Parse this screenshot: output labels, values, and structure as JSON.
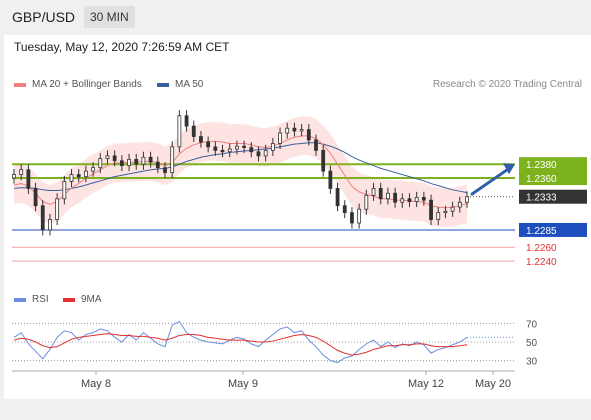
{
  "header": {
    "pair": "GBP/USD",
    "timeframe": "30 MIN"
  },
  "timestamp": "Tuesday, May 12, 2020 7:26:59 AM CET",
  "legend": {
    "ma20": "MA 20 + Bollinger Bands",
    "ma50": "MA 50"
  },
  "research": "Research © 2020 Trading Central",
  "rsi_legend": {
    "rsi": "RSI",
    "ma": "9MA"
  },
  "colors": {
    "ma20": "#f08080",
    "ma50": "#3a5fa0",
    "green": "#7cb31c",
    "blue": "#1f4fbf",
    "red": "#e03030",
    "dark": "#333333",
    "rsi": "#6a8ee0",
    "rsi_ma": "#e03030",
    "band": "#fde0de"
  },
  "chart_data": {
    "type": "candlestick",
    "ylim": [
      1.223,
      1.248
    ],
    "levels": [
      {
        "value": 1.238,
        "label": "1.2380",
        "color": "#7cb31c",
        "style": "box"
      },
      {
        "value": 1.236,
        "label": "1.2360",
        "color": "#7cb31c",
        "style": "box"
      },
      {
        "value": 1.2333,
        "label": "1.2333",
        "color": "#333333",
        "style": "box"
      },
      {
        "value": 1.2285,
        "label": "1.2285",
        "color": "#1f4fbf",
        "style": "box"
      },
      {
        "value": 1.226,
        "label": "1.2260",
        "color": "#e03030",
        "style": "text"
      },
      {
        "value": 1.224,
        "label": "1.2240",
        "color": "#e03030",
        "style": "text"
      }
    ],
    "x_ticks": [
      "May 8",
      "May 9",
      "May 12",
      "May 20"
    ],
    "price_path": [
      1.2365,
      1.2372,
      1.2345,
      1.232,
      1.2285,
      1.23,
      1.233,
      1.2355,
      1.2365,
      1.2362,
      1.237,
      1.2375,
      1.2388,
      1.2392,
      1.2385,
      1.2378,
      1.2387,
      1.238,
      1.239,
      1.2383,
      1.2375,
      1.2368,
      1.2405,
      1.245,
      1.2435,
      1.242,
      1.2412,
      1.2405,
      1.24,
      1.2398,
      1.2402,
      1.2406,
      1.2404,
      1.2398,
      1.2392,
      1.24,
      1.241,
      1.2425,
      1.2432,
      1.2428,
      1.243,
      1.2415,
      1.24,
      1.237,
      1.2345,
      1.232,
      1.231,
      1.2295,
      1.2315,
      1.2335,
      1.2345,
      1.233,
      1.2338,
      1.2325,
      1.233,
      1.2326,
      1.2332,
      1.2328,
      1.23,
      1.231,
      1.2312,
      1.2318,
      1.2325,
      1.2333
    ],
    "ma20": [
      1.235,
      1.2352,
      1.2348,
      1.2338,
      1.2326,
      1.2322,
      1.2326,
      1.2336,
      1.2346,
      1.2352,
      1.236,
      1.2366,
      1.2372,
      1.2378,
      1.2382,
      1.2382,
      1.2383,
      1.2383,
      1.2384,
      1.2384,
      1.2382,
      1.2378,
      1.2382,
      1.2395,
      1.2403,
      1.2408,
      1.2411,
      1.2413,
      1.2413,
      1.2412,
      1.241,
      1.241,
      1.241,
      1.2408,
      1.2405,
      1.2404,
      1.2406,
      1.241,
      1.2415,
      1.2419,
      1.2421,
      1.2421,
      1.2417,
      1.2408,
      1.2396,
      1.238,
      1.2364,
      1.2348,
      1.234,
      1.2336,
      1.2334,
      1.233,
      1.233,
      1.2328,
      1.2328,
      1.2327,
      1.2326,
      1.2325,
      1.232,
      1.2318,
      1.2317,
      1.2318,
      1.232,
      1.2323
    ],
    "ma50": [
      1.2345,
      1.2346,
      1.2346,
      1.2345,
      1.2343,
      1.2342,
      1.2342,
      1.2343,
      1.2345,
      1.2347,
      1.235,
      1.2353,
      1.2356,
      1.2359,
      1.2362,
      1.2364,
      1.2366,
      1.2368,
      1.237,
      1.2372,
      1.2373,
      1.2374,
      1.2376,
      1.238,
      1.2384,
      1.2387,
      1.239,
      1.2392,
      1.2394,
      1.2395,
      1.2397,
      1.2398,
      1.2399,
      1.24,
      1.2401,
      1.2402,
      1.2403,
      1.2405,
      1.2407,
      1.2409,
      1.241,
      1.2411,
      1.2411,
      1.2409,
      1.2406,
      1.2402,
      1.2397,
      1.2391,
      1.2386,
      1.2382,
      1.2378,
      1.2374,
      1.2371,
      1.2368,
      1.2365,
      1.2362,
      1.2359,
      1.2356,
      1.2352,
      1.2349,
      1.2346,
      1.2343,
      1.2341,
      1.2339
    ],
    "rsi": {
      "ylim": [
        20,
        80
      ],
      "ticks": [
        70,
        50,
        30
      ],
      "rsi": [
        55,
        60,
        48,
        40,
        32,
        42,
        55,
        62,
        60,
        52,
        58,
        60,
        64,
        62,
        55,
        50,
        58,
        52,
        60,
        54,
        48,
        45,
        68,
        72,
        60,
        55,
        52,
        50,
        49,
        48,
        52,
        55,
        53,
        48,
        45,
        52,
        58,
        64,
        66,
        60,
        62,
        52,
        45,
        36,
        30,
        28,
        33,
        35,
        42,
        48,
        52,
        45,
        50,
        44,
        48,
        46,
        50,
        47,
        38,
        42,
        44,
        47,
        50,
        55
      ],
      "ma": [
        52,
        54,
        53,
        50,
        46,
        44,
        45,
        49,
        53,
        55,
        56,
        57,
        58,
        59,
        58,
        57,
        57,
        56,
        56,
        55,
        54,
        52,
        54,
        57,
        58,
        58,
        57,
        55,
        54,
        53,
        52,
        52,
        52,
        51,
        50,
        50,
        51,
        53,
        55,
        57,
        58,
        57,
        55,
        51,
        46,
        41,
        38,
        36,
        37,
        39,
        42,
        44,
        46,
        46,
        47,
        47,
        48,
        48,
        46,
        45,
        45,
        45,
        46,
        47
      ]
    }
  }
}
